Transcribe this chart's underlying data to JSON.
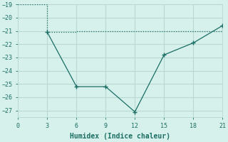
{
  "line1_x": [
    3,
    6,
    9,
    12,
    15,
    18,
    21
  ],
  "line1_y": [
    -21.1,
    -25.2,
    -25.2,
    -27.1,
    -22.8,
    -21.9,
    -20.6
  ],
  "line2_x": [
    0,
    3,
    6,
    9,
    12,
    15,
    18,
    21
  ],
  "line2_y": [
    -19.0,
    -21.1,
    -21.0,
    -21.0,
    -21.0,
    -21.0,
    -21.0,
    -20.6
  ],
  "color": "#1a6e63",
  "xlabel": "Humidex (Indice chaleur)",
  "xlim": [
    0,
    21
  ],
  "ylim": [
    -27.5,
    -19.0
  ],
  "xticks": [
    0,
    3,
    6,
    9,
    12,
    15,
    18,
    21
  ],
  "yticks": [
    -27,
    -26,
    -25,
    -24,
    -23,
    -22,
    -21,
    -20,
    -19
  ],
  "bg_color": "#d6f0ec",
  "grid_color": "#b8d8d4"
}
